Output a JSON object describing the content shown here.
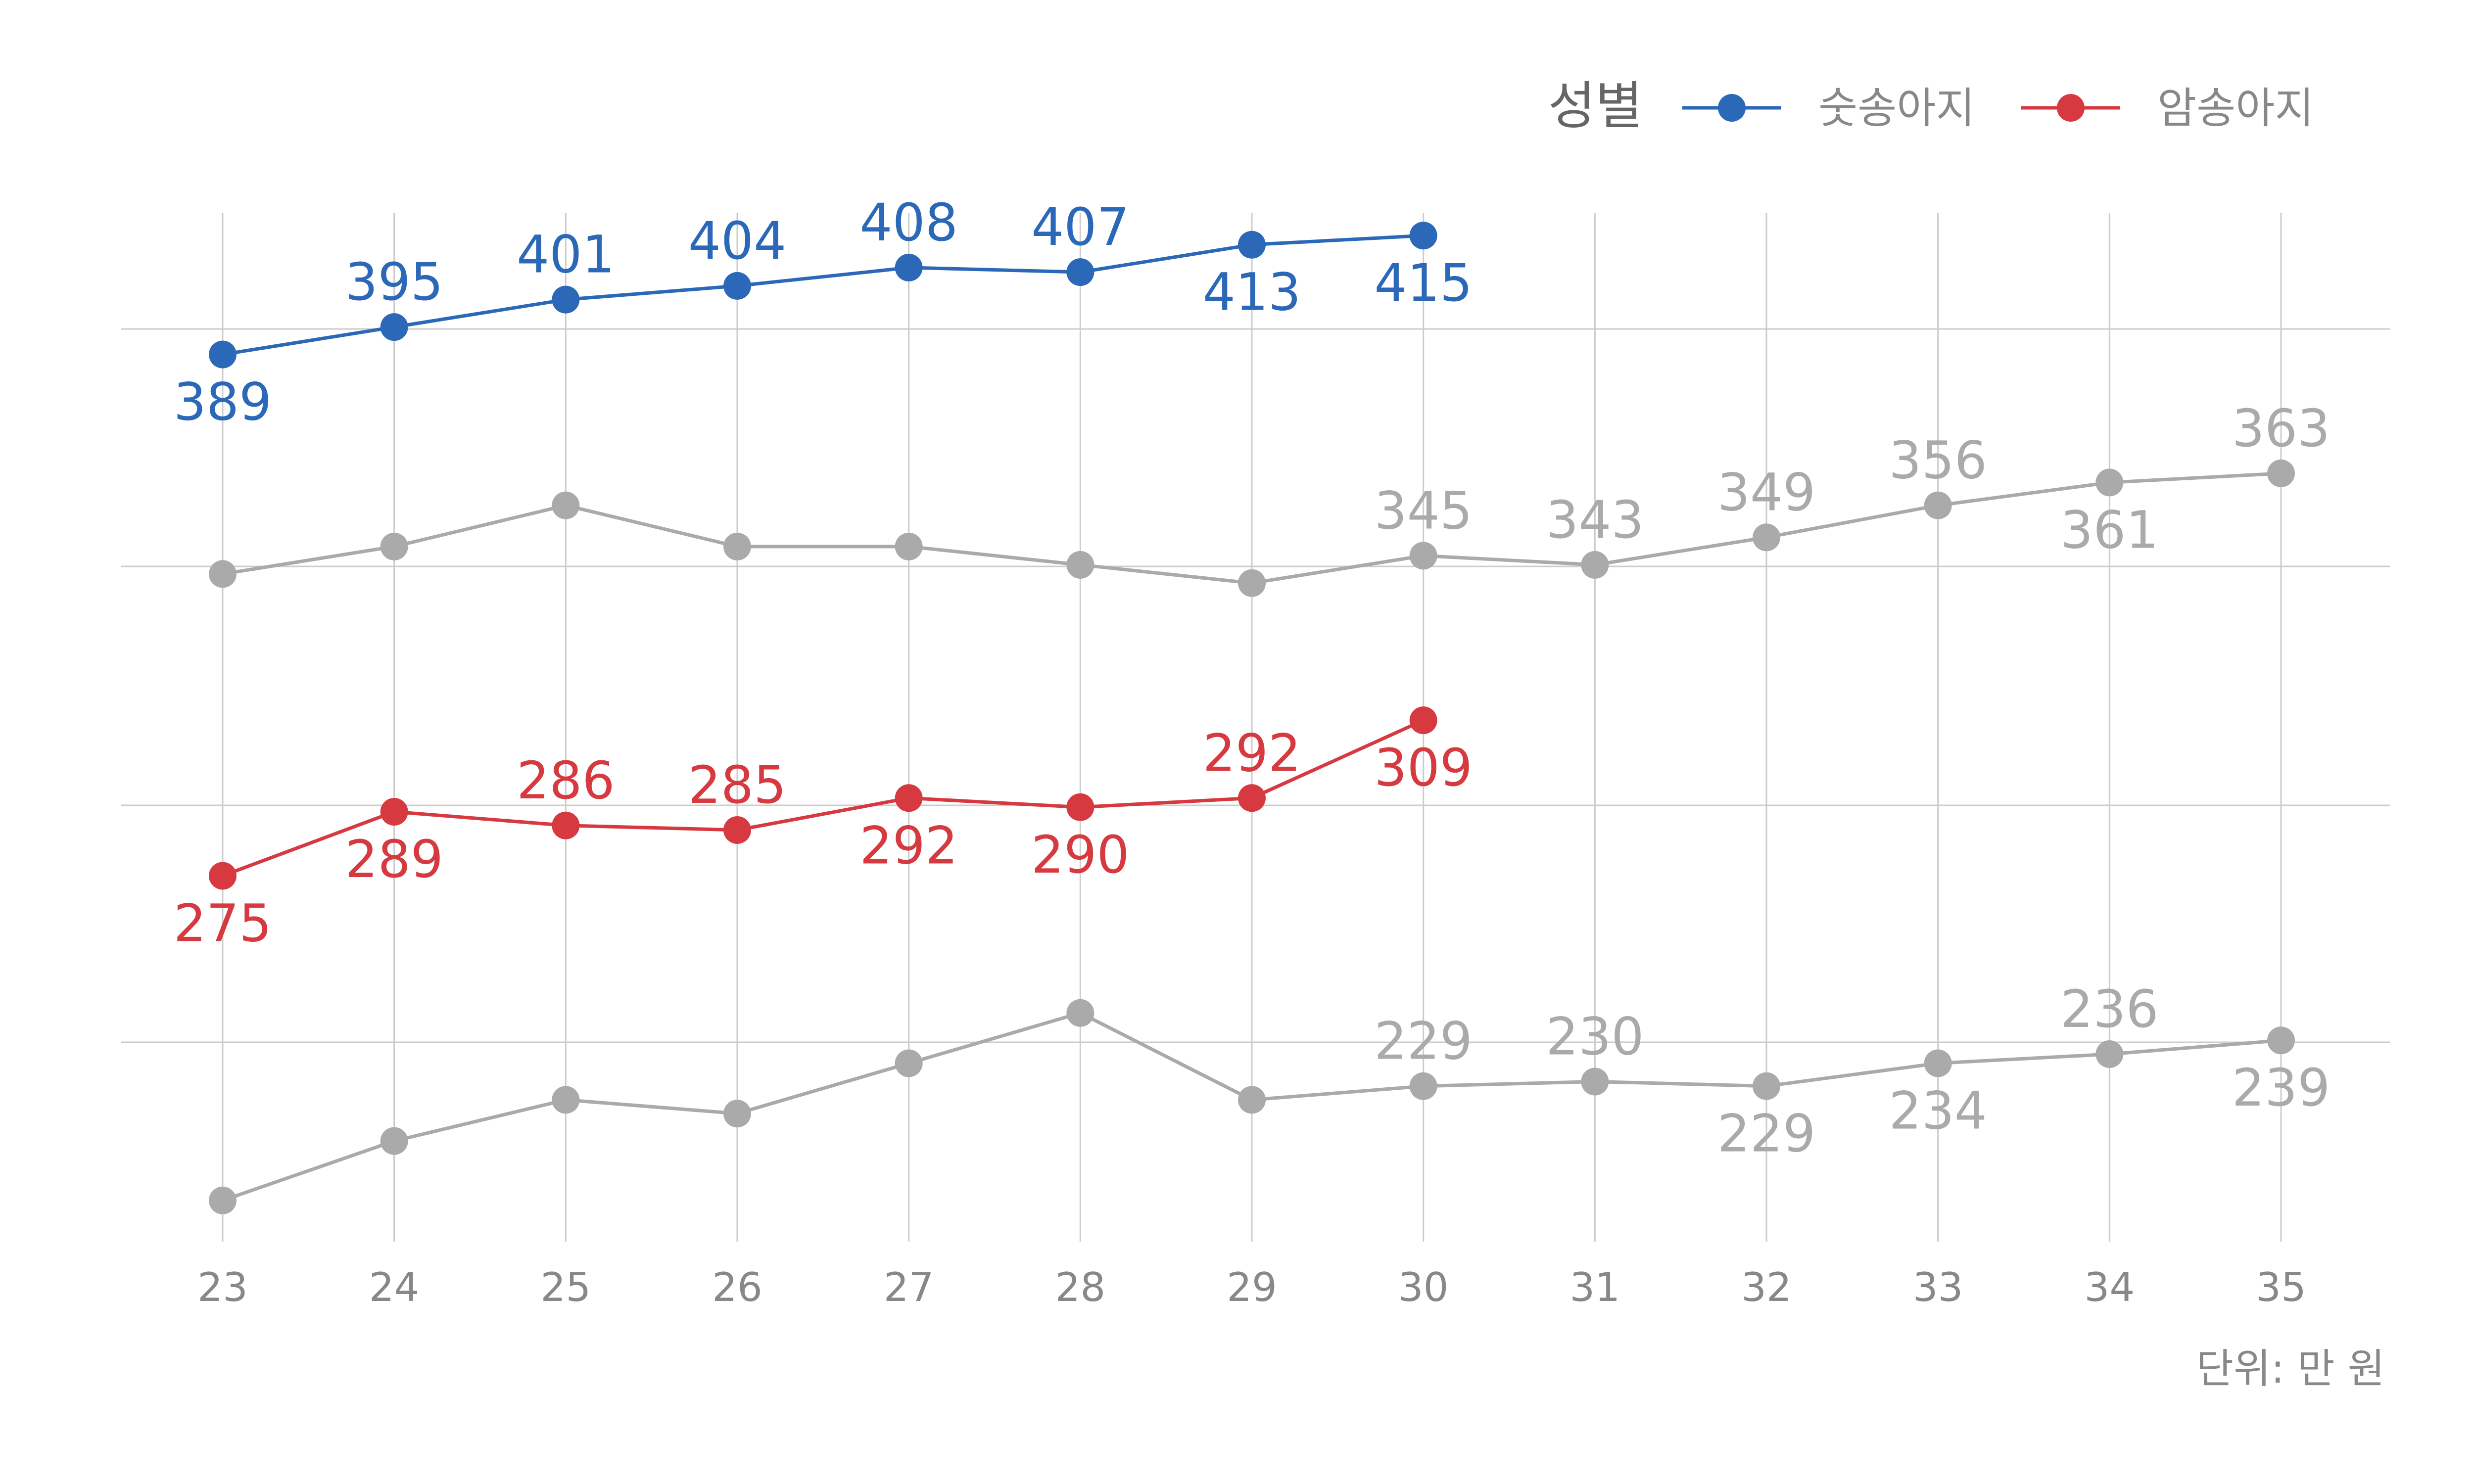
{
  "chart_data": {
    "type": "line",
    "x": [
      23,
      24,
      25,
      26,
      27,
      28,
      29,
      30,
      31,
      32,
      33,
      34,
      35
    ],
    "x_ticks": [
      "23",
      "24",
      "25",
      "26",
      "27",
      "28",
      "29",
      "30",
      "31",
      "32",
      "33",
      "34",
      "35"
    ],
    "ylim": [
      195,
      420
    ],
    "grid": true,
    "legend": {
      "title": "성별",
      "placement": "top-right",
      "entries": [
        {
          "label": "숫송아지",
          "color": "#2b69b8"
        },
        {
          "label": "암송아지",
          "color": "#d63a40"
        }
      ]
    },
    "caption": "단위: 만 원",
    "series": [
      {
        "name": "숫송아지",
        "color": "#2b69b8",
        "x": [
          23,
          24,
          25,
          26,
          27,
          28,
          29,
          30
        ],
        "values": [
          389,
          395,
          401,
          404,
          408,
          407,
          413,
          415
        ],
        "labels": [
          "389",
          "395",
          "401",
          "404",
          "408",
          "407",
          "413",
          "415"
        ],
        "label_side": [
          "below",
          "above",
          "above",
          "above",
          "above",
          "above",
          "below",
          "below"
        ]
      },
      {
        "name": "암송아지",
        "color": "#d63a40",
        "x": [
          23,
          24,
          25,
          26,
          27,
          28,
          29,
          30
        ],
        "values": [
          275,
          289,
          286,
          285,
          292,
          290,
          292,
          309
        ],
        "labels": [
          "275",
          "289",
          "286",
          "285",
          "292",
          "290",
          "292",
          "309"
        ],
        "label_side": [
          "below",
          "below",
          "above",
          "above",
          "below",
          "below",
          "above",
          "below"
        ]
      },
      {
        "color": "#aaaaaa",
        "x": [
          23,
          24,
          25,
          26,
          27,
          28,
          29,
          30,
          31,
          32,
          33,
          34,
          35
        ],
        "values": [
          341,
          347,
          356,
          347,
          347,
          343,
          339,
          345,
          343,
          349,
          356,
          361,
          363
        ],
        "labels": [
          null,
          null,
          null,
          null,
          null,
          null,
          null,
          "345",
          "343",
          "349",
          "356",
          "361",
          "363"
        ],
        "label_side": [
          "above",
          "above",
          "above",
          "above",
          "above",
          "above",
          "above",
          "above",
          "above",
          "above",
          "above",
          "below",
          "above"
        ]
      },
      {
        "color": "#aaaaaa",
        "x": [
          23,
          24,
          25,
          26,
          27,
          28,
          29,
          30,
          31,
          32,
          33,
          34,
          35
        ],
        "values": [
          204,
          217,
          226,
          223,
          234,
          245,
          226,
          229,
          230,
          229,
          234,
          236,
          239
        ],
        "labels": [
          null,
          null,
          null,
          null,
          null,
          null,
          null,
          "229",
          "230",
          "229",
          "234",
          "236",
          "239"
        ],
        "label_side": [
          "above",
          "above",
          "above",
          "above",
          "above",
          "above",
          "above",
          "above",
          "above",
          "below",
          "below",
          "above",
          "below"
        ]
      }
    ]
  }
}
